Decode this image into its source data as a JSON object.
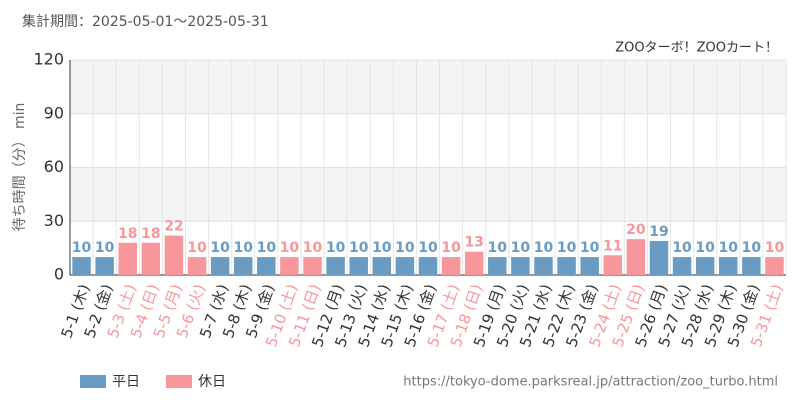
{
  "chart_data": {
    "type": "bar",
    "title": "集計期間：2025-05-01～2025-05-31",
    "subtitle": "ZOOターボ！ZOOカート！",
    "y_label": "待ち時間（分） min",
    "source": "https://tokyo-dome.parksreal.jp/attraction/zoo_turbo.html",
    "categories": [
      "5-1 (木)",
      "5-2 (金)",
      "5-3 (土)",
      "5-4 (日)",
      "5-5 (月)",
      "5-6 (火)",
      "5-7 (水)",
      "5-8 (木)",
      "5-9 (金)",
      "5-10 (土)",
      "5-11 (日)",
      "5-12 (月)",
      "5-13 (火)",
      "5-14 (水)",
      "5-15 (木)",
      "5-16 (金)",
      "5-17 (土)",
      "5-18 (日)",
      "5-19 (月)",
      "5-20 (火)",
      "5-21 (水)",
      "5-22 (木)",
      "5-23 (金)",
      "5-24 (土)",
      "5-25 (日)",
      "5-26 (月)",
      "5-27 (火)",
      "5-28 (水)",
      "5-29 (木)",
      "5-30 (金)",
      "5-31 (土)"
    ],
    "series": [
      {
        "name": "平日",
        "color": "#6a9bc3",
        "values": [
          10,
          10,
          null,
          null,
          null,
          null,
          10,
          10,
          10,
          null,
          null,
          10,
          10,
          10,
          10,
          10,
          null,
          null,
          10,
          10,
          10,
          10,
          10,
          null,
          null,
          19,
          10,
          10,
          10,
          10,
          null
        ]
      },
      {
        "name": "休日",
        "color": "#f7969b",
        "values": [
          null,
          null,
          18,
          18,
          22,
          10,
          null,
          null,
          null,
          10,
          10,
          null,
          null,
          null,
          null,
          null,
          10,
          13,
          null,
          null,
          null,
          null,
          null,
          11,
          20,
          null,
          null,
          null,
          null,
          null,
          10
        ]
      }
    ],
    "ylim": [
      0,
      120
    ],
    "yticks": [
      0,
      30,
      60,
      90,
      120
    ],
    "grid": true
  }
}
